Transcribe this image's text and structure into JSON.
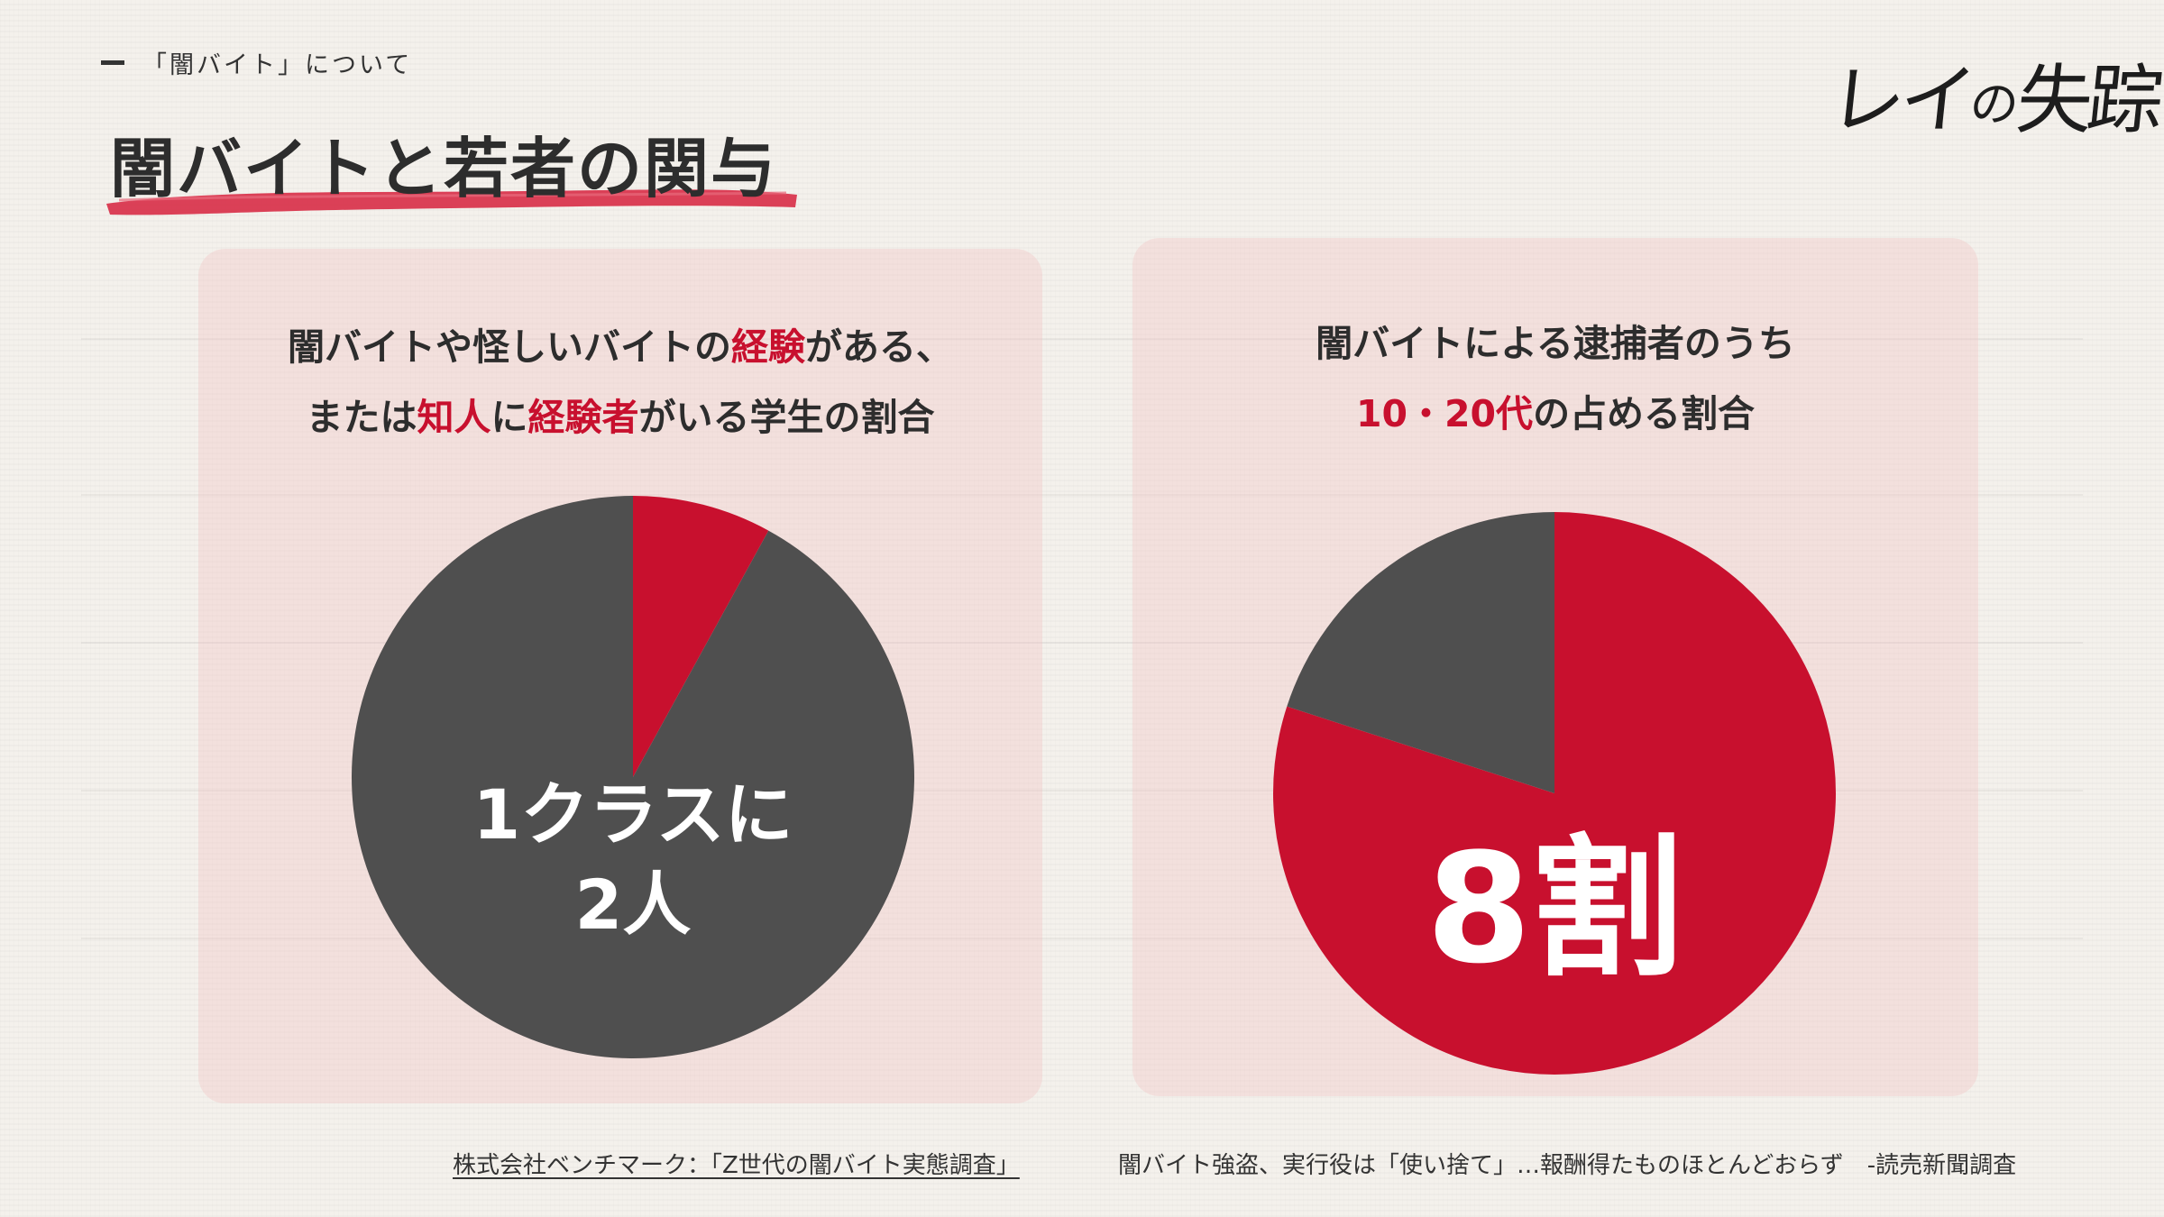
{
  "header": {
    "section_label": "「闇バイト」について",
    "title": "闇バイトと若者の関与",
    "logo": {
      "main": "レイ",
      "small": "の",
      "tail": "失踪"
    }
  },
  "colors": {
    "accent": "#c8102e",
    "dark": "#4f4f4f",
    "panel": "#f6dcdc",
    "brush": "#d8314a"
  },
  "panels": [
    {
      "caption_parts": [
        {
          "text": "闇バイトや怪しいバイトの",
          "hl": false
        },
        {
          "text": "経験",
          "hl": true
        },
        {
          "text": "がある、",
          "hl": false
        },
        {
          "text": "\n",
          "hl": false
        },
        {
          "text": "または",
          "hl": false
        },
        {
          "text": "知人",
          "hl": true
        },
        {
          "text": "に",
          "hl": false
        },
        {
          "text": "経験者",
          "hl": true
        },
        {
          "text": "がいる学生の割合",
          "hl": false
        }
      ],
      "overlay_lines": [
        "1クラスに",
        "2人"
      ]
    },
    {
      "caption_parts": [
        {
          "text": "闇バイトによる逮捕者のうち",
          "hl": false
        },
        {
          "text": "\n",
          "hl": false
        },
        {
          "text": "10・20代",
          "hl": true
        },
        {
          "text": "の占める割合",
          "hl": false
        }
      ],
      "overlay_lines": [
        "8割"
      ]
    }
  ],
  "chart_data": [
    {
      "type": "pie",
      "title": "",
      "start": "top",
      "direction": "clockwise",
      "slices": [
        {
          "value": 8,
          "color": "#c8102e"
        },
        {
          "value": 92,
          "color": "#4f4f4f"
        }
      ]
    },
    {
      "type": "pie",
      "title": "",
      "start": "top",
      "direction": "clockwise",
      "slices": [
        {
          "value": 80,
          "color": "#c8102e"
        },
        {
          "value": 20,
          "color": "#4f4f4f"
        }
      ]
    }
  ],
  "sources": {
    "left": "株式会社ベンチマーク：「Z世代の闇バイト実態調査」",
    "right": "闇バイト強盗、実行役は「使い捨て」…報酬得たものほとんどおらず　-読売新聞調査"
  }
}
